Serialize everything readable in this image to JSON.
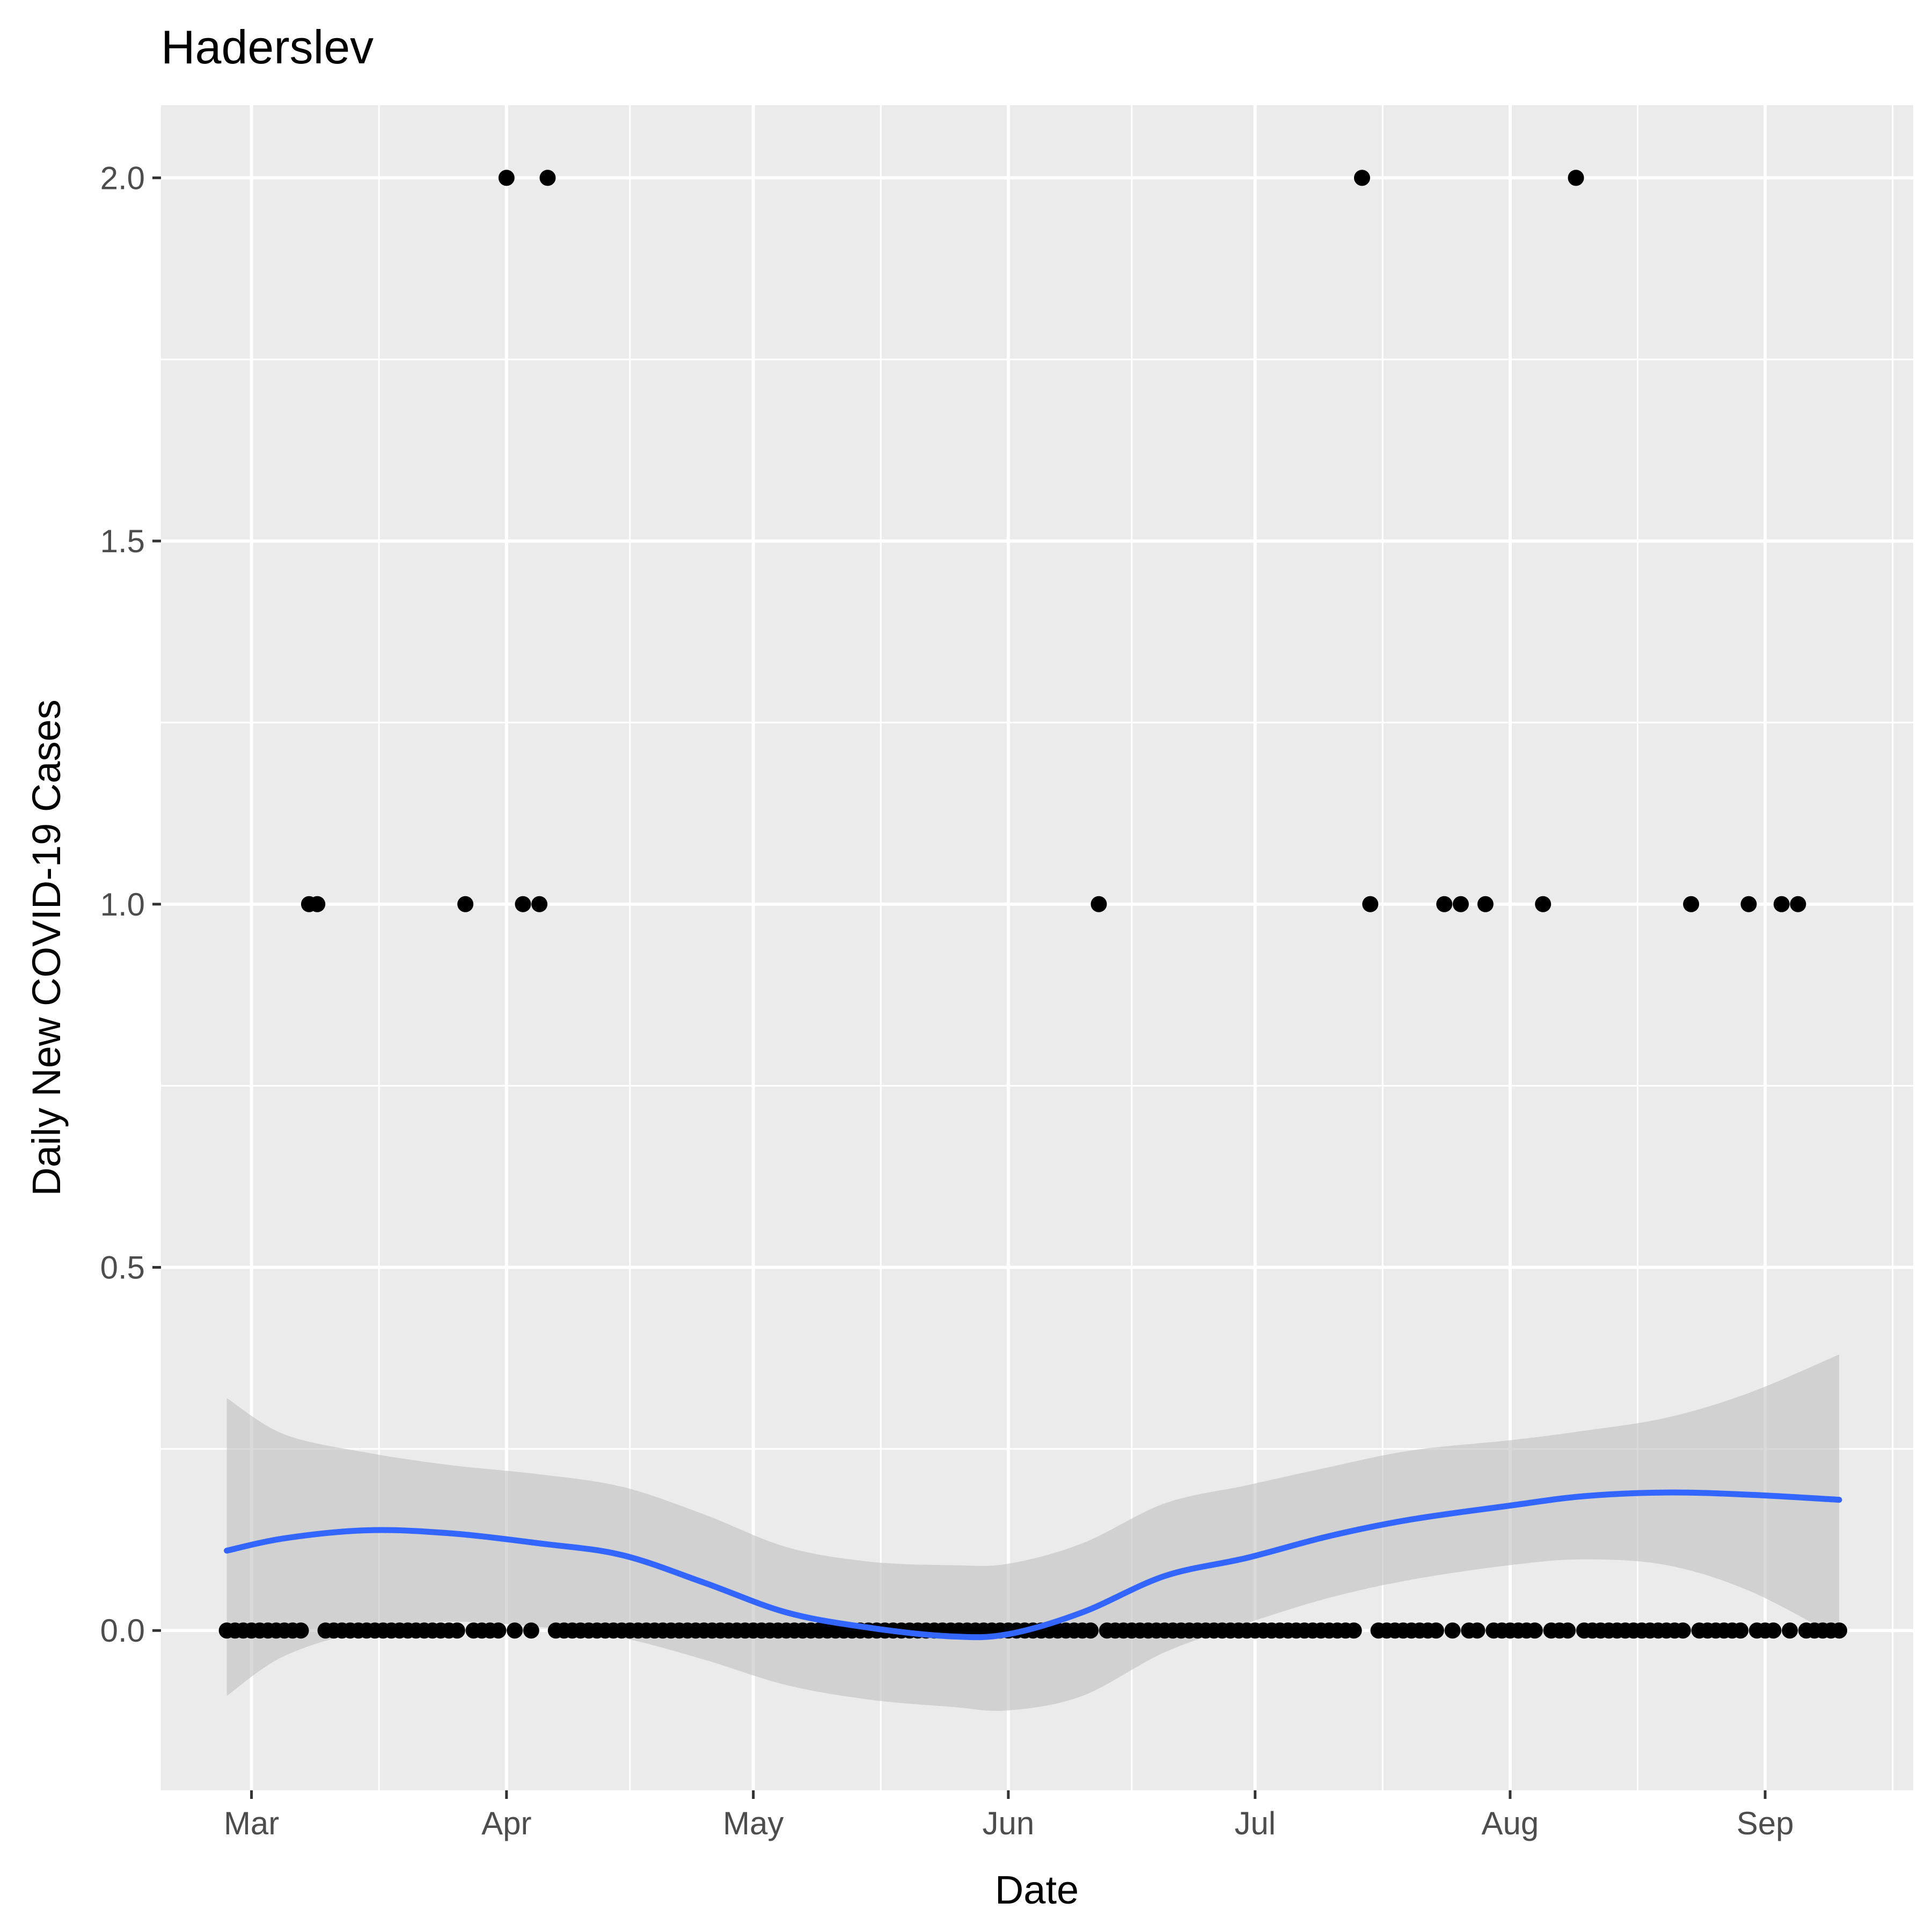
{
  "chart_data": {
    "type": "scatter",
    "title": "Haderslev",
    "xlabel": "Date",
    "ylabel": "Daily New COVID-19 Cases",
    "x_axis": {
      "type": "date",
      "range": [
        "2020-02-19",
        "2020-09-19"
      ],
      "tick_labels": [
        "Mar",
        "Apr",
        "May",
        "Jun",
        "Jul",
        "Aug",
        "Sep"
      ],
      "tick_dates": [
        "2020-03-01",
        "2020-04-01",
        "2020-05-01",
        "2020-06-01",
        "2020-07-01",
        "2020-08-01",
        "2020-09-01"
      ]
    },
    "y_axis": {
      "range": [
        -0.22,
        2.1
      ],
      "tick_labels": [
        "0.0",
        "0.5",
        "1.0",
        "1.5",
        "2.0"
      ],
      "tick_values": [
        0,
        0.5,
        1,
        1.5,
        2
      ]
    },
    "grid": true,
    "legend": "none",
    "colors": {
      "panel": "#ebebeb",
      "grid": "#ffffff",
      "points": "#000000",
      "smooth_line": "#3366ff",
      "confidence_band": "#bfbfbf"
    },
    "series": [
      {
        "type": "scatter",
        "date_range": [
          "2020-02-27",
          "2020-09-10"
        ],
        "default_value": 0,
        "nonzero": [
          {
            "x": "2020-03-08",
            "y": 1
          },
          {
            "x": "2020-03-09",
            "y": 1
          },
          {
            "x": "2020-03-27",
            "y": 1
          },
          {
            "x": "2020-04-01",
            "y": 2
          },
          {
            "x": "2020-04-03",
            "y": 1
          },
          {
            "x": "2020-04-05",
            "y": 1
          },
          {
            "x": "2020-04-06",
            "y": 2
          },
          {
            "x": "2020-06-12",
            "y": 1
          },
          {
            "x": "2020-07-14",
            "y": 2
          },
          {
            "x": "2020-07-15",
            "y": 1
          },
          {
            "x": "2020-07-24",
            "y": 1
          },
          {
            "x": "2020-07-26",
            "y": 1
          },
          {
            "x": "2020-07-29",
            "y": 1
          },
          {
            "x": "2020-08-05",
            "y": 1
          },
          {
            "x": "2020-08-09",
            "y": 2
          },
          {
            "x": "2020-08-23",
            "y": 1
          },
          {
            "x": "2020-08-30",
            "y": 1
          },
          {
            "x": "2020-09-03",
            "y": 1
          },
          {
            "x": "2020-09-05",
            "y": 1
          }
        ]
      },
      {
        "type": "line",
        "smooth": true,
        "x": [
          "2020-02-27",
          "2020-03-05",
          "2020-03-15",
          "2020-03-25",
          "2020-04-05",
          "2020-04-15",
          "2020-04-25",
          "2020-05-05",
          "2020-05-15",
          "2020-05-25",
          "2020-06-01",
          "2020-06-10",
          "2020-06-20",
          "2020-06-30",
          "2020-07-10",
          "2020-07-20",
          "2020-08-01",
          "2020-08-10",
          "2020-08-20",
          "2020-08-30",
          "2020-09-10"
        ],
        "y": [
          0.11,
          0.127,
          0.138,
          0.134,
          0.12,
          0.104,
          0.066,
          0.025,
          0.004,
          -0.008,
          -0.005,
          0.025,
          0.075,
          0.1,
          0.13,
          0.153,
          0.172,
          0.185,
          0.19,
          0.187,
          0.18
        ],
        "lower": [
          -0.09,
          -0.035,
          0.0,
          0.012,
          0.005,
          -0.01,
          -0.04,
          -0.075,
          -0.095,
          -0.105,
          -0.11,
          -0.09,
          -0.03,
          0.01,
          0.045,
          0.07,
          0.09,
          0.098,
          0.09,
          0.055,
          -0.01
        ],
        "upper": [
          0.32,
          0.27,
          0.245,
          0.228,
          0.215,
          0.198,
          0.16,
          0.115,
          0.095,
          0.09,
          0.092,
          0.12,
          0.175,
          0.2,
          0.225,
          0.248,
          0.262,
          0.275,
          0.293,
          0.327,
          0.38
        ]
      }
    ]
  }
}
